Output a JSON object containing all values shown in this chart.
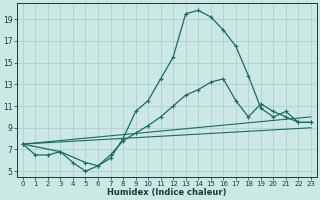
{
  "xlabel": "Humidex (Indice chaleur)",
  "background_color": "#cce8e4",
  "grid_color": "#aacccc",
  "line_color": "#1a6b60",
  "xlim": [
    -0.5,
    23.5
  ],
  "ylim": [
    4.5,
    20.5
  ],
  "xticks": [
    0,
    1,
    2,
    3,
    4,
    5,
    6,
    7,
    8,
    9,
    10,
    11,
    12,
    13,
    14,
    15,
    16,
    17,
    18,
    19,
    20,
    21,
    22,
    23
  ],
  "yticks": [
    5,
    7,
    9,
    11,
    13,
    15,
    17,
    19
  ],
  "line1_x": [
    0,
    1,
    2,
    3,
    4,
    5,
    6,
    7,
    8,
    9,
    10,
    11,
    12,
    13,
    14,
    15,
    16,
    17,
    18,
    19,
    20,
    21,
    22,
    23
  ],
  "line1_y": [
    7.5,
    6.5,
    6.5,
    6.8,
    5.8,
    5.0,
    5.5,
    6.2,
    8.0,
    10.5,
    11.5,
    13.5,
    15.5,
    19.5,
    19.8,
    19.2,
    18.0,
    16.5,
    13.8,
    10.8,
    10.0,
    10.5,
    9.5,
    9.5
  ],
  "line2_x": [
    0,
    3,
    5,
    6,
    7,
    8,
    9,
    10,
    11,
    12,
    13,
    14,
    15,
    16,
    17,
    18,
    19,
    20,
    21,
    22,
    23
  ],
  "line2_y": [
    7.5,
    6.8,
    5.8,
    5.5,
    6.5,
    7.8,
    8.5,
    9.2,
    10.0,
    11.0,
    12.0,
    12.5,
    13.2,
    13.5,
    11.5,
    10.0,
    11.2,
    10.5,
    10.0,
    9.5,
    9.5
  ],
  "line3_x": [
    0,
    23
  ],
  "line3_y": [
    7.5,
    10.0
  ],
  "line4_x": [
    0,
    23
  ],
  "line4_y": [
    7.5,
    9.0
  ]
}
